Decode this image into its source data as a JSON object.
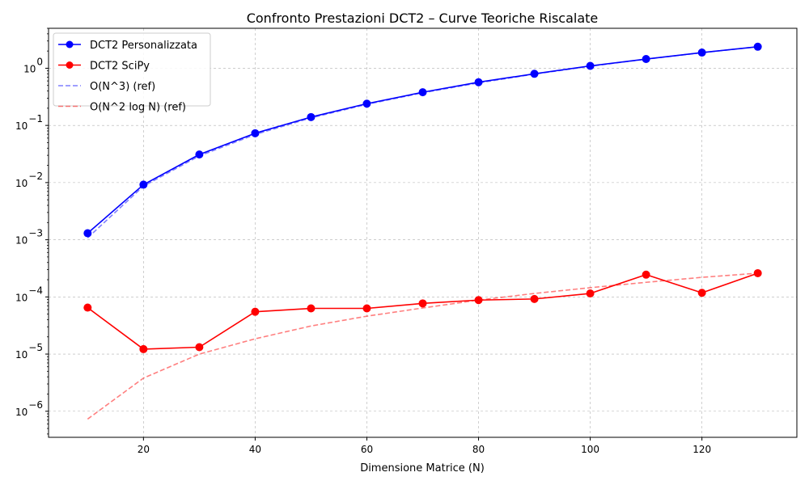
{
  "chart_data": {
    "type": "line",
    "title": "Confronto Prestazioni DCT2 – Curve Teoriche Riscalate",
    "xlabel": "Dimensione Matrice (N)",
    "ylabel": "",
    "xlim": [
      3,
      137
    ],
    "ylim": [
      3.5e-07,
      5
    ],
    "yscale": "log",
    "grid": true,
    "legend_position": "top-left",
    "x_ticks": [
      20,
      40,
      60,
      80,
      100,
      120
    ],
    "y_ticks": [
      {
        "value": 1e-06,
        "base": "10",
        "exp": "−6"
      },
      {
        "value": 1e-05,
        "base": "10",
        "exp": "−5"
      },
      {
        "value": 0.0001,
        "base": "10",
        "exp": "−4"
      },
      {
        "value": 0.001,
        "base": "10",
        "exp": "−3"
      },
      {
        "value": 0.01,
        "base": "10",
        "exp": "−2"
      },
      {
        "value": 0.1,
        "base": "10",
        "exp": "−1"
      },
      {
        "value": 1,
        "base": "10",
        "exp": "0"
      }
    ],
    "x": [
      10,
      20,
      30,
      40,
      50,
      60,
      70,
      80,
      90,
      100,
      110,
      120,
      130
    ],
    "series": [
      {
        "name": "DCT2 Personalizzata",
        "color": "#0000ff",
        "style": "solid",
        "marker": true,
        "values": [
          0.0013,
          0.0092,
          0.031,
          0.073,
          0.14,
          0.24,
          0.38,
          0.57,
          0.8,
          1.1,
          1.45,
          1.88,
          2.38
        ]
      },
      {
        "name": "DCT2 SciPy",
        "color": "#ff0000",
        "style": "solid",
        "marker": true,
        "values": [
          6.5e-05,
          1.22e-05,
          1.32e-05,
          5.5e-05,
          6.3e-05,
          6.3e-05,
          7.7e-05,
          8.8e-05,
          9.2e-05,
          0.000115,
          0.000245,
          0.000118,
          0.00026
        ]
      },
      {
        "name": "O(N^3) (ref)",
        "color": "#0000ff",
        "style": "dashed",
        "opacity": 0.5,
        "marker": false,
        "values": [
          0.00108,
          0.00867,
          0.0293,
          0.0694,
          0.1355,
          0.234,
          0.372,
          0.555,
          0.79,
          1.084,
          1.443,
          1.873,
          2.38
        ]
      },
      {
        "name": "O(N^2 log N) (ref)",
        "color": "#ff0000",
        "style": "dashed",
        "opacity": 0.5,
        "marker": false,
        "values": [
          7.3e-07,
          3.8e-06,
          1e-05,
          1.85e-05,
          3.1e-05,
          4.6e-05,
          6.4e-05,
          8.8e-05,
          0.000115,
          0.000145,
          0.00018,
          0.00022,
          0.00026
        ]
      }
    ]
  }
}
